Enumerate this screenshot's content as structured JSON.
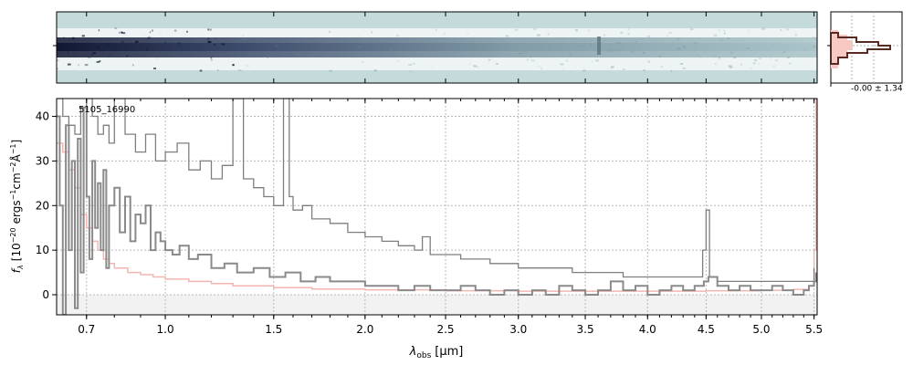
{
  "chart_data": {
    "type": "line",
    "annotation": "5105_16990",
    "xlabel_symbol": "λ",
    "xlabel_subscript": "obs",
    "xlabel_unit": "[μm]",
    "ylabel_main": "f",
    "ylabel_sub": "λ",
    "ylabel_unit_a": "[10",
    "ylabel_exp_a": "−20",
    "ylabel_unit_b": "ergs",
    "ylabel_exp_b": "−1",
    "ylabel_unit_c": "cm",
    "ylabel_exp_c": "−2",
    "ylabel_unit_d": "Å",
    "ylabel_exp_d": "−1",
    "ylabel_unit_e": "]",
    "x_ticks": [
      "0.7",
      "1.0",
      "1.5",
      "2.0",
      "2.5",
      "3.0",
      "3.5",
      "4.0",
      "4.5",
      "5.0",
      "5.5"
    ],
    "x_tick_values": [
      0.7,
      1.0,
      1.5,
      2.0,
      2.5,
      3.0,
      3.5,
      4.0,
      4.5,
      5.0,
      5.5
    ],
    "y_ticks": [
      "0",
      "10",
      "20",
      "30",
      "40"
    ],
    "y_tick_values": [
      0,
      10,
      20,
      30,
      40
    ],
    "xlim": [
      0.6,
      5.53
    ],
    "ylim": [
      -4.5,
      44
    ],
    "x_scale": "sqrt-like",
    "grid": true,
    "histogram_annotation": "-0.00 ± 1.34",
    "colors": {
      "flux": "#8a8a8a",
      "error": "#f4b6b0",
      "model": "#7f7f7f",
      "spectrum2d_bg": "#c5dbdb",
      "spectrum2d_dark": "#101a36",
      "hist_fill": "#f8c9c2",
      "hist_line": "#5a2a22"
    },
    "series": [
      {
        "key": "flux",
        "x": [
          0.6,
          0.61,
          0.62,
          0.63,
          0.64,
          0.65,
          0.66,
          0.67,
          0.68,
          0.69,
          0.7,
          0.71,
          0.72,
          0.73,
          0.74,
          0.75,
          0.76,
          0.77,
          0.78,
          0.8,
          0.82,
          0.84,
          0.86,
          0.88,
          0.9,
          0.92,
          0.94,
          0.96,
          0.98,
          1.0,
          1.03,
          1.06,
          1.1,
          1.14,
          1.2,
          1.26,
          1.32,
          1.4,
          1.48,
          1.56,
          1.64,
          1.72,
          1.8,
          1.9,
          2.0,
          2.1,
          2.2,
          2.3,
          2.4,
          2.5,
          2.6,
          2.7,
          2.8,
          2.9,
          3.0,
          3.1,
          3.2,
          3.3,
          3.4,
          3.5,
          3.6,
          3.7,
          3.8,
          3.9,
          4.0,
          4.1,
          4.2,
          4.3,
          4.4,
          4.48,
          4.52,
          4.6,
          4.7,
          4.8,
          4.9,
          5.0,
          5.1,
          5.2,
          5.3,
          5.4,
          5.45,
          5.5,
          5.52
        ],
        "y": [
          40,
          20,
          -4.5,
          38,
          10,
          30,
          -3,
          35,
          5,
          42,
          22,
          8,
          30,
          15,
          25,
          10,
          28,
          6,
          20,
          24,
          14,
          22,
          12,
          18,
          16,
          20,
          10,
          14,
          12,
          10,
          9,
          11,
          8,
          9,
          6,
          7,
          5,
          6,
          4,
          5,
          3,
          4,
          3,
          3,
          2,
          2,
          1,
          2,
          1,
          1,
          2,
          1,
          0,
          1,
          0,
          1,
          0,
          2,
          1,
          0,
          1,
          3,
          1,
          2,
          0,
          1,
          2,
          1,
          2,
          3,
          4,
          2,
          1,
          2,
          1,
          1,
          2,
          1,
          0,
          1,
          2,
          3,
          5
        ]
      },
      {
        "key": "model",
        "x": [
          0.6,
          0.62,
          0.64,
          0.66,
          0.68,
          0.7,
          0.72,
          0.74,
          0.76,
          0.78,
          0.8,
          0.84,
          0.88,
          0.92,
          0.96,
          1.0,
          1.05,
          1.1,
          1.15,
          1.2,
          1.25,
          1.3,
          1.35,
          1.4,
          1.45,
          1.5,
          1.55,
          1.58,
          1.6,
          1.65,
          1.7,
          1.8,
          1.9,
          2.0,
          2.1,
          2.2,
          2.3,
          2.35,
          2.4,
          2.5,
          2.6,
          2.8,
          3.0,
          3.2,
          3.4,
          3.6,
          3.8,
          4.0,
          4.2,
          4.4,
          4.47,
          4.5,
          4.53,
          4.6,
          4.8,
          5.0,
          5.2,
          5.4,
          5.5
        ],
        "y": [
          44,
          40,
          38,
          36,
          42,
          44,
          40,
          36,
          38,
          34,
          44,
          36,
          32,
          36,
          30,
          32,
          34,
          28,
          30,
          26,
          29,
          44,
          26,
          24,
          22,
          20,
          44,
          22,
          19,
          20,
          17,
          16,
          14,
          13,
          12,
          11,
          10,
          13,
          9,
          9,
          8,
          7,
          6,
          6,
          5,
          5,
          4,
          4,
          4,
          4,
          10,
          19,
          4,
          3,
          3,
          3,
          3,
          3,
          6
        ]
      },
      {
        "key": "error",
        "x": [
          0.6,
          0.62,
          0.64,
          0.66,
          0.68,
          0.7,
          0.72,
          0.74,
          0.76,
          0.78,
          0.8,
          0.85,
          0.9,
          0.95,
          1.0,
          1.1,
          1.2,
          1.3,
          1.5,
          1.7,
          2.0,
          2.5,
          3.0,
          3.5,
          4.0,
          4.5,
          5.0,
          5.3,
          5.45,
          5.5,
          5.52
        ],
        "y": [
          34,
          32,
          28,
          24,
          18,
          15,
          12,
          10,
          8,
          7,
          6,
          5,
          4.5,
          4,
          3.5,
          3,
          2.5,
          2,
          1.6,
          1.3,
          1.1,
          0.9,
          0.8,
          0.8,
          0.8,
          0.9,
          1.0,
          1.2,
          2.0,
          10,
          44
        ]
      }
    ]
  }
}
